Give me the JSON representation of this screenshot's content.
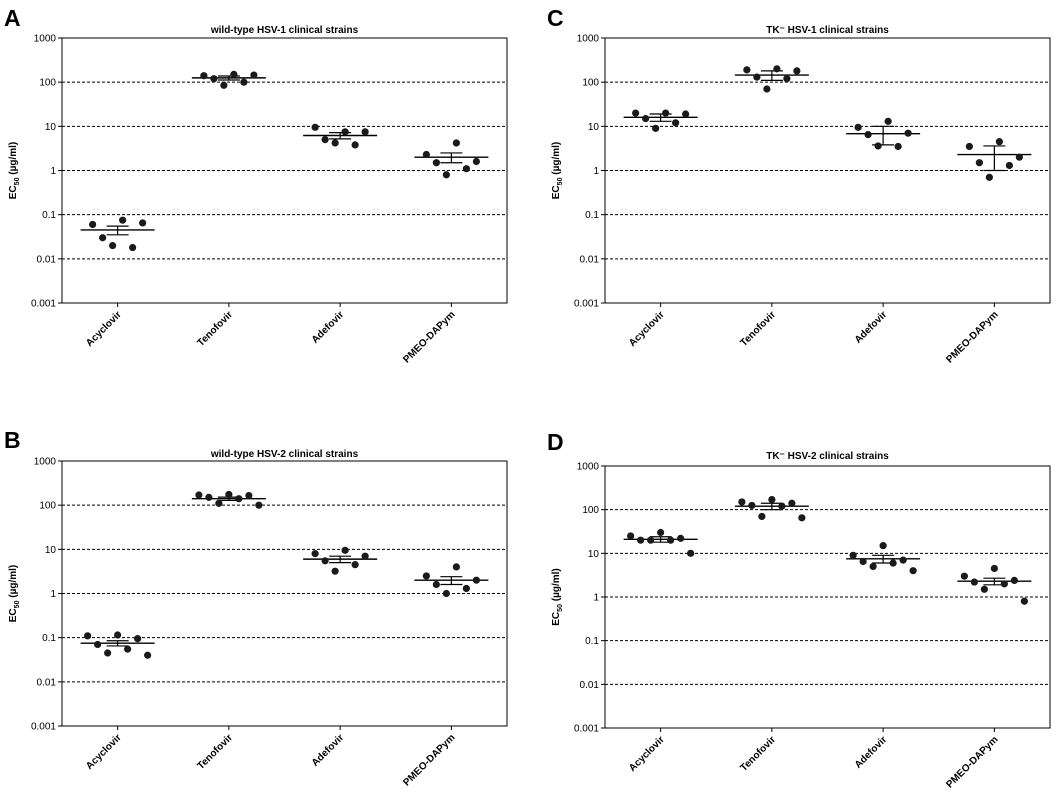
{
  "figure": {
    "y_tick_labels": [
      "0.001",
      "0.01",
      "0.1",
      "1",
      "10",
      "100",
      "1000"
    ],
    "ylabel_main": "EC",
    "ylabel_sub": "50",
    "ylabel_unit": " (µg/ml)",
    "dot_color": "#1a1a1a",
    "line_color": "#000000"
  },
  "chart_data": [
    {
      "panel": "A",
      "type": "scatter",
      "title": "wild-type HSV-1 clinical strains",
      "ylabel": "EC50 (µg/ml)",
      "yscale": "log",
      "ylim": [
        0.001,
        1000
      ],
      "grid": "dashed horizontal at decades",
      "categories": [
        "Acyclovir",
        "Tenofovir",
        "Adefovir",
        "PMEO-DAPym"
      ],
      "groups": [
        {
          "name": "Acyclovir",
          "points": [
            0.075,
            0.06,
            0.065,
            0.03,
            0.018,
            0.02
          ],
          "mean": 0.045,
          "sem": [
            0.035,
            0.055
          ]
        },
        {
          "name": "Tenofovir",
          "points": [
            150,
            140,
            145,
            120,
            100,
            85
          ],
          "mean": 125,
          "sem": [
            112,
            138
          ]
        },
        {
          "name": "Adefovir",
          "points": [
            7.5,
            9.5,
            7.5,
            5.0,
            3.8,
            4.2
          ],
          "mean": 6.2,
          "sem": [
            5.2,
            7.2
          ]
        },
        {
          "name": "PMEO-DAPym",
          "points": [
            4.2,
            2.3,
            1.6,
            1.5,
            1.1,
            0.8
          ],
          "mean": 2.0,
          "sem": [
            1.5,
            2.5
          ]
        }
      ]
    },
    {
      "panel": "B",
      "type": "scatter",
      "title": "wild-type HSV-2 clinical strains",
      "ylabel": "EC50 (µg/ml)",
      "yscale": "log",
      "ylim": [
        0.001,
        1000
      ],
      "grid": "dashed horizontal at decades",
      "categories": [
        "Acyclovir",
        "Tenofovir",
        "Adefovir",
        "PMEO-DAPym"
      ],
      "groups": [
        {
          "name": "Acyclovir",
          "points": [
            0.115,
            0.11,
            0.095,
            0.07,
            0.055,
            0.045,
            0.04
          ],
          "mean": 0.075,
          "sem": [
            0.065,
            0.085
          ]
        },
        {
          "name": "Tenofovir",
          "points": [
            175,
            170,
            165,
            150,
            140,
            110,
            100
          ],
          "mean": 140,
          "sem": [
            128,
            152
          ]
        },
        {
          "name": "Adefovir",
          "points": [
            9.5,
            8.0,
            7.0,
            5.5,
            4.5,
            3.2
          ],
          "mean": 6.0,
          "sem": [
            5.0,
            7.0
          ]
        },
        {
          "name": "PMEO-DAPym",
          "points": [
            4.0,
            2.5,
            2.0,
            1.6,
            1.3,
            1.0
          ],
          "mean": 2.0,
          "sem": [
            1.6,
            2.4
          ]
        }
      ]
    },
    {
      "panel": "C",
      "type": "scatter",
      "title": "TK⁻ HSV-1 clinical strains",
      "ylabel": "EC50 (µg/ml)",
      "yscale": "log",
      "ylim": [
        0.001,
        1000
      ],
      "grid": "dashed horizontal at decades",
      "categories": [
        "Acyclovir",
        "Tenofovir",
        "Adefovir",
        "PMEO-DAPym"
      ],
      "groups": [
        {
          "name": "Acyclovir",
          "points": [
            20,
            20,
            19,
            15,
            12,
            9
          ],
          "mean": 16,
          "sem": [
            13,
            19
          ]
        },
        {
          "name": "Tenofovir",
          "points": [
            200,
            190,
            180,
            130,
            120,
            70
          ],
          "mean": 145,
          "sem": [
            110,
            180
          ]
        },
        {
          "name": "Adefovir",
          "points": [
            13,
            9.5,
            7.0,
            6.5,
            3.5,
            3.6
          ],
          "mean": 6.8,
          "sem": [
            3.8,
            10
          ]
        },
        {
          "name": "PMEO-DAPym",
          "points": [
            4.5,
            3.5,
            2.0,
            1.5,
            1.3,
            0.7
          ],
          "mean": 2.3,
          "sem": [
            1.0,
            3.6
          ]
        }
      ]
    },
    {
      "panel": "D",
      "type": "scatter",
      "title": "TK⁻ HSV-2 clinical strains",
      "ylabel": "EC50 (µg/ml)",
      "yscale": "log",
      "ylim": [
        0.001,
        1000
      ],
      "grid": "dashed horizontal at decades",
      "categories": [
        "Acyclovir",
        "Tenofovir",
        "Adefovir",
        "PMEO-DAPym"
      ],
      "groups": [
        {
          "name": "Acyclovir",
          "points": [
            30,
            25,
            22,
            20,
            20,
            20,
            10
          ],
          "mean": 21,
          "sem": [
            18,
            24
          ]
        },
        {
          "name": "Tenofovir",
          "points": [
            170,
            150,
            140,
            125,
            120,
            70,
            65
          ],
          "mean": 120,
          "sem": [
            100,
            140
          ]
        },
        {
          "name": "Adefovir",
          "points": [
            15,
            9.0,
            7.0,
            6.5,
            6.0,
            5.0,
            4.0
          ],
          "mean": 7.5,
          "sem": [
            6.0,
            9.0
          ]
        },
        {
          "name": "PMEO-DAPym",
          "points": [
            4.5,
            3.0,
            2.4,
            2.2,
            2.0,
            1.5,
            0.8
          ],
          "mean": 2.3,
          "sem": [
            1.9,
            2.7
          ]
        }
      ]
    }
  ]
}
